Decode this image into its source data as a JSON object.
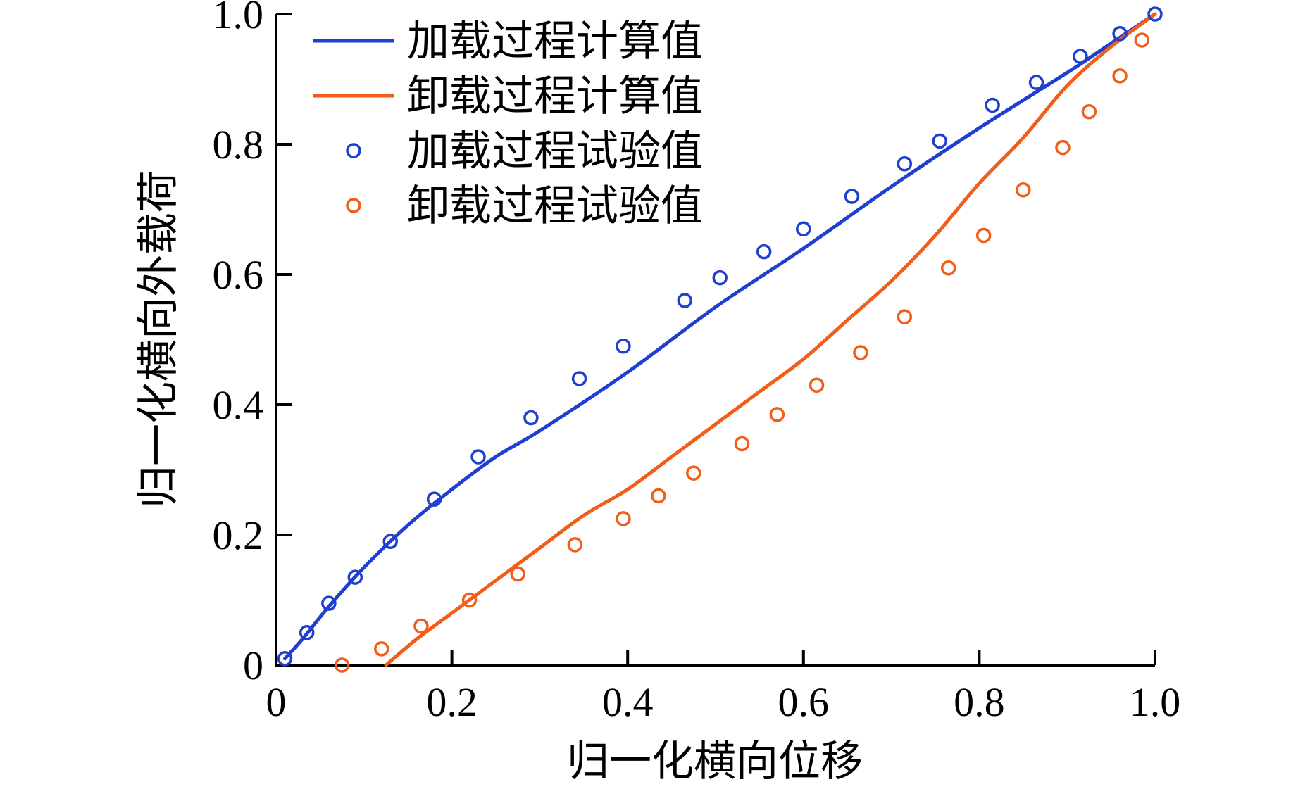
{
  "chart_data": {
    "type": "line",
    "xlabel": "归一化横向位移",
    "ylabel": "归一化横向外载荷",
    "xlim": [
      0,
      1.0
    ],
    "ylim": [
      0,
      1.0
    ],
    "x_ticks": [
      "0",
      "0.2",
      "0.4",
      "0.6",
      "0.8",
      "1.0"
    ],
    "y_ticks": [
      "0",
      "0.2",
      "0.4",
      "0.6",
      "0.8",
      "1.0"
    ],
    "grid": false,
    "legend_position": "top-left",
    "series": [
      {
        "name": "加载过程计算值",
        "kind": "line",
        "color": "#1f3fd0",
        "x": [
          0.01,
          0.03,
          0.06,
          0.1,
          0.15,
          0.2,
          0.25,
          0.3,
          0.4,
          0.5,
          0.6,
          0.7,
          0.8,
          0.9,
          0.95,
          1.0
        ],
        "y": [
          0.01,
          0.04,
          0.09,
          0.15,
          0.215,
          0.27,
          0.32,
          0.36,
          0.45,
          0.55,
          0.64,
          0.735,
          0.825,
          0.91,
          0.955,
          1.0
        ]
      },
      {
        "name": "卸载过程计算值",
        "kind": "line",
        "color": "#f25d1a",
        "x": [
          0.125,
          0.16,
          0.2,
          0.25,
          0.3,
          0.35,
          0.4,
          0.45,
          0.5,
          0.55,
          0.6,
          0.65,
          0.7,
          0.75,
          0.8,
          0.85,
          0.9,
          0.95,
          1.0
        ],
        "y": [
          0.0,
          0.04,
          0.08,
          0.13,
          0.18,
          0.23,
          0.27,
          0.32,
          0.37,
          0.42,
          0.47,
          0.53,
          0.59,
          0.66,
          0.74,
          0.81,
          0.89,
          0.95,
          1.0
        ]
      },
      {
        "name": "加载过程试验值",
        "kind": "scatter",
        "color": "#1f3fd0",
        "x": [
          0.01,
          0.035,
          0.06,
          0.09,
          0.13,
          0.18,
          0.23,
          0.29,
          0.345,
          0.395,
          0.465,
          0.505,
          0.555,
          0.6,
          0.655,
          0.715,
          0.755,
          0.815,
          0.865,
          0.915,
          0.96,
          1.0
        ],
        "y": [
          0.01,
          0.05,
          0.095,
          0.135,
          0.19,
          0.255,
          0.32,
          0.38,
          0.44,
          0.49,
          0.56,
          0.595,
          0.635,
          0.67,
          0.72,
          0.77,
          0.805,
          0.86,
          0.895,
          0.935,
          0.97,
          1.0
        ]
      },
      {
        "name": "卸载过程试验值",
        "kind": "scatter",
        "color": "#f25d1a",
        "x": [
          0.075,
          0.12,
          0.165,
          0.22,
          0.275,
          0.34,
          0.395,
          0.435,
          0.475,
          0.53,
          0.57,
          0.615,
          0.665,
          0.715,
          0.765,
          0.805,
          0.85,
          0.895,
          0.925,
          0.96,
          0.985
        ],
        "y": [
          0.0,
          0.025,
          0.06,
          0.1,
          0.14,
          0.185,
          0.225,
          0.26,
          0.295,
          0.34,
          0.385,
          0.43,
          0.48,
          0.535,
          0.61,
          0.66,
          0.73,
          0.795,
          0.85,
          0.905,
          0.96
        ]
      }
    ]
  }
}
